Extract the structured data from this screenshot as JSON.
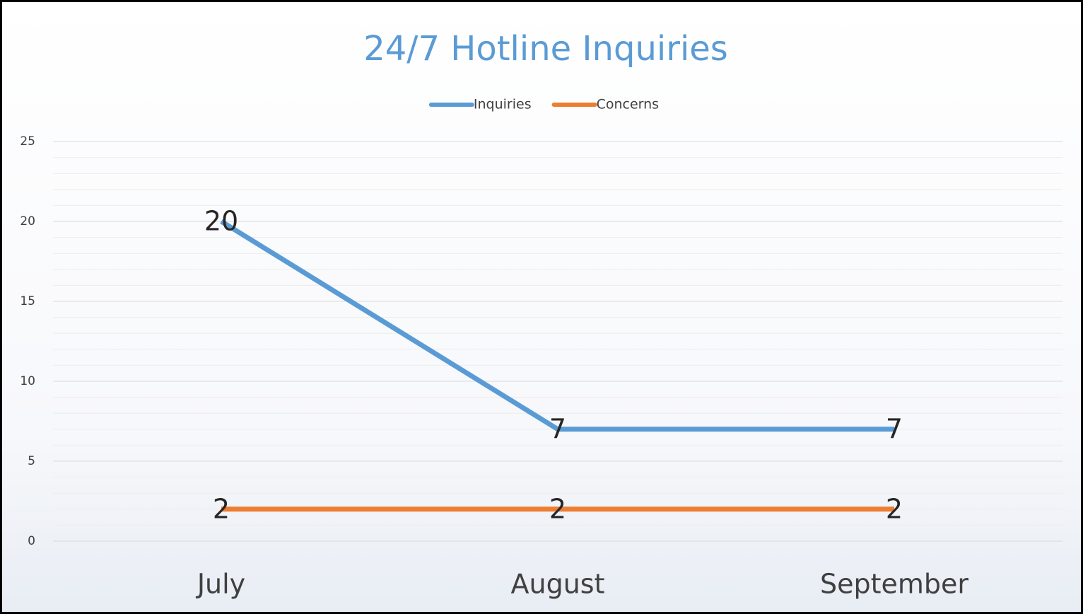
{
  "chart_data": {
    "type": "line",
    "title": "24/7 Hotline Inquiries",
    "categories": [
      "July",
      "August",
      "September"
    ],
    "series": [
      {
        "name": "Inquiries",
        "color": "#5b9bd5",
        "values": [
          20,
          7,
          7
        ]
      },
      {
        "name": "Concerns",
        "color": "#ed7d31",
        "values": [
          2,
          2,
          2
        ]
      }
    ],
    "ylim": [
      0,
      25
    ],
    "yticks": [
      0,
      5,
      10,
      15,
      20,
      25
    ],
    "grid": true,
    "minor_grid": true,
    "legend": "top",
    "data_labels": true
  }
}
